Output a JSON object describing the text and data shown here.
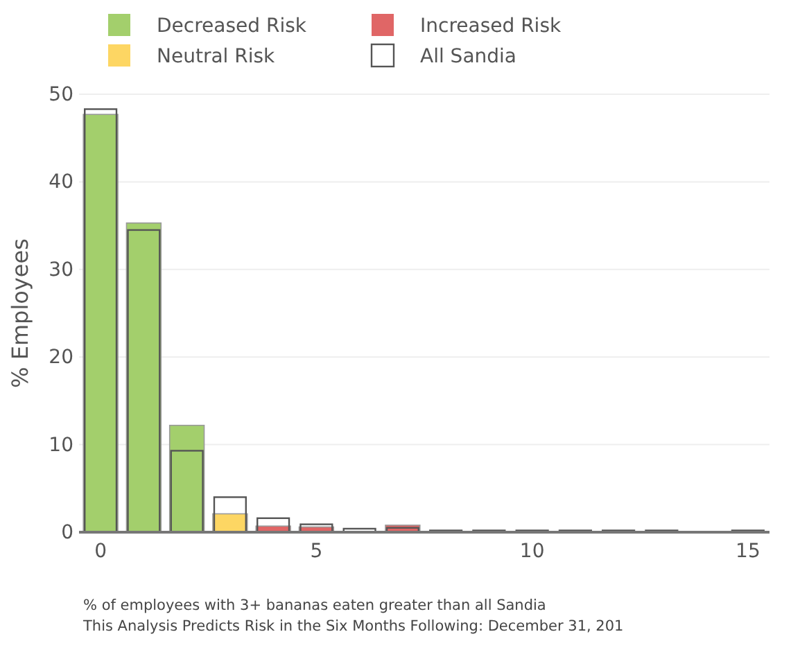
{
  "chart_data": {
    "type": "bar",
    "ylabel": "% Employees",
    "x": [
      0,
      1,
      2,
      3,
      4,
      5,
      6,
      7,
      8,
      9,
      10,
      11,
      12,
      13,
      14,
      15
    ],
    "xlim": [
      -0.5,
      15.5
    ],
    "xticks": [
      0,
      5,
      10,
      15
    ],
    "ylim": [
      0,
      50
    ],
    "yticks": [
      0,
      10,
      20,
      30,
      40,
      50
    ],
    "grid": "y",
    "legend": "top",
    "series": [
      {
        "name": "Decreased Risk",
        "color": "#a3cf6c",
        "values": [
          47.7,
          35.3,
          12.2,
          null,
          null,
          null,
          null,
          null,
          null,
          null,
          null,
          null,
          null,
          null,
          null,
          null
        ]
      },
      {
        "name": "Increased Risk",
        "color": "#e06666",
        "values": [
          null,
          null,
          null,
          null,
          0.7,
          0.6,
          null,
          0.8,
          null,
          null,
          null,
          null,
          null,
          null,
          null,
          null
        ]
      },
      {
        "name": "Neutral Risk",
        "color": "#fdd663",
        "values": [
          null,
          null,
          null,
          2.1,
          null,
          null,
          null,
          null,
          null,
          null,
          null,
          null,
          null,
          null,
          null,
          null
        ]
      },
      {
        "name": "All Sandia",
        "color": "#555555",
        "values": [
          48.3,
          34.5,
          9.3,
          4.0,
          1.6,
          0.9,
          0.4,
          0.5,
          0.2,
          0.2,
          0.2,
          0.2,
          0.2,
          0.2,
          null,
          0.2
        ]
      }
    ],
    "annotations": [
      "% of employees with 3+ bananas eaten greater than all Sandia",
      "This Analysis Predicts Risk in the Six Months Following: December 31, 201"
    ]
  }
}
